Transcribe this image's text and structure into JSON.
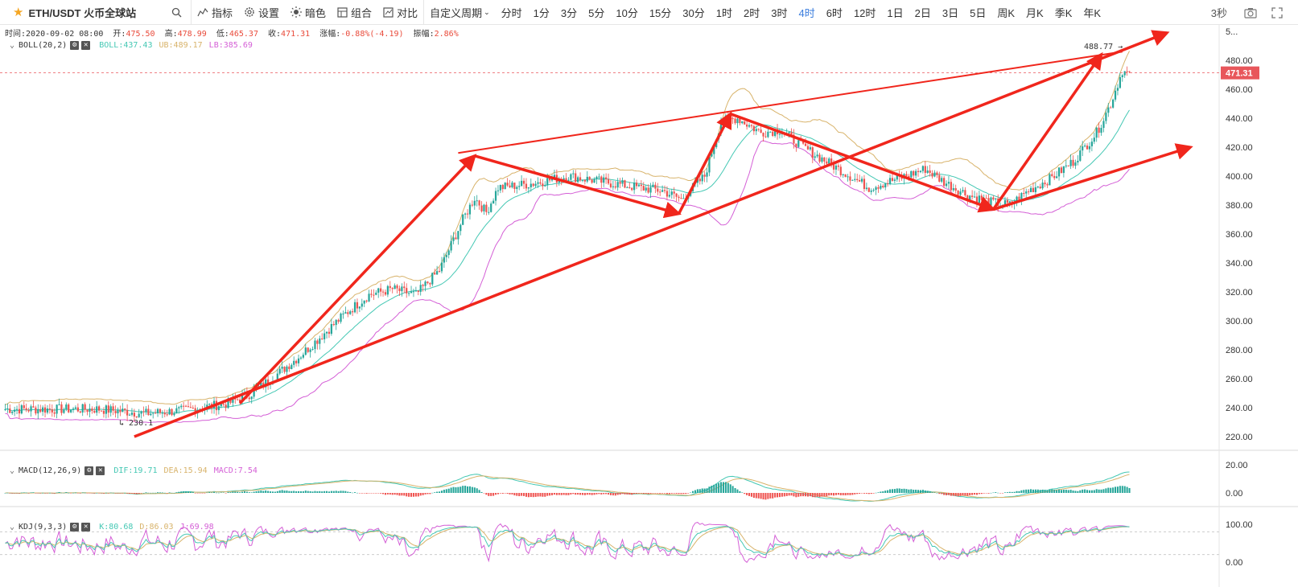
{
  "toolbar": {
    "symbol": "ETH/USDT 火币全球站",
    "search_icon": "search-icon",
    "buttons": [
      {
        "label": "指标",
        "icon": "indicator-icon"
      },
      {
        "label": "设置",
        "icon": "gear-icon"
      },
      {
        "label": "暗色",
        "icon": "sun-icon"
      },
      {
        "label": "组合",
        "icon": "layout-icon"
      },
      {
        "label": "对比",
        "icon": "compare-icon"
      }
    ],
    "custom_period": "自定义周期",
    "periods": [
      "分时",
      "1分",
      "3分",
      "5分",
      "10分",
      "15分",
      "30分",
      "1时",
      "2时",
      "3时",
      "4时",
      "6时",
      "12时",
      "1日",
      "2日",
      "3日",
      "5日",
      "周K",
      "月K",
      "季K",
      "年K"
    ],
    "active_period": "4时",
    "refresh": "3秒"
  },
  "info": {
    "time_label": "时间:",
    "time": "2020-09-02 08:00",
    "open_label": "开:",
    "open": "475.50",
    "high_label": "高:",
    "high": "478.99",
    "low_label": "低:",
    "low": "465.37",
    "close_label": "收:",
    "close": "471.31",
    "change_label": "涨幅:",
    "change": "-0.88%(-4.19)",
    "amp_label": "振幅:",
    "amp": "2.86%"
  },
  "boll": {
    "name": "BOLL(20,2)",
    "boll": "BOLL:437.43",
    "ub": "UB:489.17",
    "lb": "LB:385.69"
  },
  "macd": {
    "name": "MACD(12,26,9)",
    "dif": "DIF:19.71",
    "dea": "DEA:15.94",
    "macd": "MACD:7.54"
  },
  "kdj": {
    "name": "KDJ(9,3,3)",
    "k": "K:80.68",
    "d": "D:86.03",
    "j": "J:69.98"
  },
  "annotations": {
    "high_marker": "488.77",
    "low_marker": "230.1",
    "current_price": "471.31"
  },
  "colors": {
    "up": "#26a69a",
    "down": "#ef5350",
    "boll_mid": "#45c8b4",
    "boll_ub": "#d8b36b",
    "boll_lb": "#d45fd6",
    "arrow": "#f0261c",
    "price_tag": "#e8565b",
    "active": "#3b7ddd"
  },
  "chart_data": {
    "type": "candlestick",
    "main_axis": {
      "ticks": [
        220,
        240,
        260,
        280,
        300,
        320,
        340,
        360,
        380,
        400,
        420,
        440,
        460,
        480,
        500
      ]
    },
    "main_axis_labels": [
      "220.00",
      "240.00",
      "260.00",
      "280.00",
      "300.00",
      "320.00",
      "340.00",
      "360.00",
      "380.00",
      "400.00",
      "420.00",
      "440.00",
      "460.00",
      "480.00",
      "5..."
    ],
    "macd_axis_labels": [
      "0.00",
      "20.00"
    ],
    "macd_ticks": [
      0,
      20
    ],
    "kdj_axis_labels": [
      "0.00",
      "100.00"
    ],
    "kdj_ticks": [
      0,
      100
    ],
    "close_anchors": [
      [
        0,
        239
      ],
      [
        40,
        239
      ],
      [
        60,
        236
      ],
      [
        75,
        238
      ],
      [
        95,
        243
      ],
      [
        105,
        250
      ],
      [
        115,
        262
      ],
      [
        125,
        275
      ],
      [
        135,
        290
      ],
      [
        145,
        305
      ],
      [
        155,
        318
      ],
      [
        165,
        322
      ],
      [
        175,
        318
      ],
      [
        185,
        335
      ],
      [
        195,
        370
      ],
      [
        200,
        385
      ],
      [
        205,
        375
      ],
      [
        210,
        392
      ],
      [
        225,
        395
      ],
      [
        240,
        400
      ],
      [
        255,
        396
      ],
      [
        270,
        392
      ],
      [
        280,
        390
      ],
      [
        288,
        384
      ],
      [
        298,
        400
      ],
      [
        305,
        438
      ],
      [
        312,
        440
      ],
      [
        322,
        430
      ],
      [
        330,
        432
      ],
      [
        340,
        420
      ],
      [
        350,
        410
      ],
      [
        360,
        400
      ],
      [
        368,
        392
      ],
      [
        380,
        398
      ],
      [
        392,
        405
      ],
      [
        400,
        396
      ],
      [
        410,
        387
      ],
      [
        420,
        382
      ],
      [
        428,
        380
      ],
      [
        436,
        390
      ],
      [
        445,
        398
      ],
      [
        455,
        410
      ],
      [
        465,
        430
      ],
      [
        471,
        450
      ],
      [
        476,
        473
      ],
      [
        478,
        471
      ]
    ],
    "trend_arrows": [
      [
        [
          100,
          243
        ],
        [
          200,
          414
        ]
      ],
      [
        [
          200,
          414
        ],
        [
          287,
          374
        ]
      ],
      [
        [
          287,
          374
        ],
        [
          309,
          443
        ]
      ],
      [
        [
          309,
          443
        ],
        [
          421,
          377
        ]
      ],
      [
        [
          421,
          377
        ],
        [
          467,
          484
        ]
      ],
      [
        [
          55,
          220
        ],
        [
          495,
          499
        ]
      ],
      [
        [
          421,
          377
        ],
        [
          505,
          420
        ]
      ]
    ],
    "upper_channel": [
      [
        193,
        416
      ],
      [
        476,
        486
      ]
    ]
  }
}
